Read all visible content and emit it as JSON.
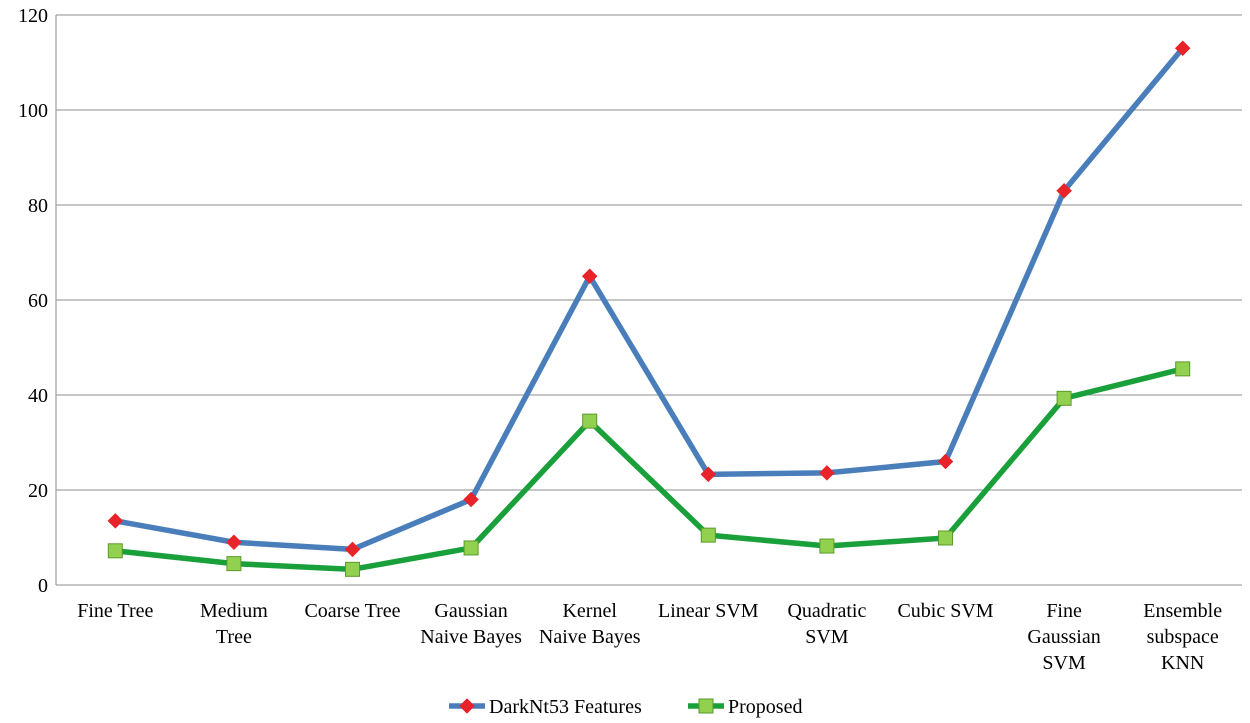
{
  "chart_data": {
    "type": "line",
    "categories": [
      [
        "Fine Tree"
      ],
      [
        "Medium",
        "Tree"
      ],
      [
        "Coarse Tree"
      ],
      [
        "Gaussian",
        "Naive Bayes"
      ],
      [
        "Kernel",
        "Naive Bayes"
      ],
      [
        "Linear SVM"
      ],
      [
        "Quadratic",
        "SVM"
      ],
      [
        "Cubic SVM"
      ],
      [
        "Fine",
        "Gaussian",
        "SVM"
      ],
      [
        "Ensemble",
        "subspace",
        "KNN"
      ]
    ],
    "series": [
      {
        "name": "DarkNt53 Features",
        "values": [
          13.5,
          9,
          7.5,
          18,
          65,
          23.3,
          23.6,
          26,
          83,
          113
        ],
        "line_color": "#4a7ebb",
        "marker": "diamond",
        "marker_color": "#e8232a"
      },
      {
        "name": "Proposed",
        "values": [
          7.2,
          4.5,
          3.3,
          7.8,
          34.5,
          10.5,
          8.2,
          9.9,
          39.3,
          45.5
        ],
        "line_color": "#1aa03a",
        "marker": "square",
        "marker_color": "#92d050"
      }
    ],
    "ylim": [
      0,
      120
    ],
    "yticks": [
      0,
      20,
      40,
      60,
      80,
      100,
      120
    ],
    "grid": true,
    "legend_position": "bottom"
  }
}
